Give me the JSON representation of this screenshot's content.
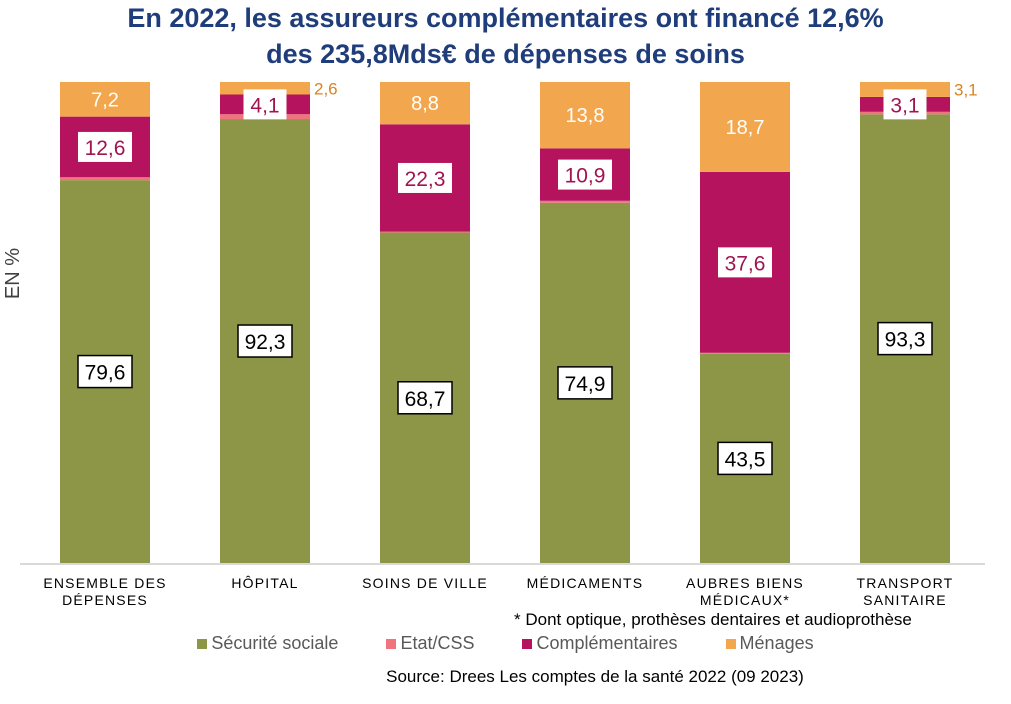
{
  "title": {
    "line1": "En 2022, les assureurs complémentaires ont financé 12,6%",
    "line2": "des 235,8Mds€ de dépenses de soins"
  },
  "chart_data": {
    "type": "bar",
    "stacked": true,
    "title": "En 2022, les assureurs complémentaires ont financé 12,6% des 235,8Mds€ de dépenses de soins",
    "ylabel": "EN %",
    "ylim": [
      0,
      100
    ],
    "grid": false,
    "legend_position": "bottom",
    "categories": [
      [
        "ENSEMBLE DES",
        "DÉPENSES"
      ],
      [
        "HÔPITAL"
      ],
      [
        "SOINS DE VILLE"
      ],
      [
        "MÉDICAMENTS"
      ],
      [
        "AUBRES BIENS",
        "MÉDICAUX*"
      ],
      [
        "TRANSPORT",
        "SANITAIRE"
      ]
    ],
    "series": [
      {
        "name": "Sécurité sociale",
        "color": "#8C9646",
        "values": [
          79.6,
          92.3,
          68.7,
          74.9,
          43.5,
          93.3
        ],
        "labels": [
          "79,6",
          "92,3",
          "68,7",
          "74,9",
          "43,5",
          "93,3"
        ]
      },
      {
        "name": "Etat/CSS",
        "color": "#F0737D",
        "values": [
          0.6,
          1.0,
          0.2,
          0.4,
          0.2,
          0.5
        ],
        "labels": [
          "",
          "",
          "",
          "",
          "",
          ""
        ]
      },
      {
        "name": "Complémentaires",
        "color": "#B5135E",
        "values": [
          12.6,
          4.1,
          22.3,
          10.9,
          37.6,
          3.1
        ],
        "labels": [
          "12,6",
          "4,1",
          "22,3",
          "10,9",
          "37,6",
          "3,1"
        ]
      },
      {
        "name": "Ménages",
        "color": "#F2A64E",
        "values": [
          7.2,
          2.6,
          8.8,
          13.8,
          18.7,
          3.1
        ],
        "labels": [
          "7,2",
          "2,6",
          "8,8",
          "13,8",
          "18,7",
          "3,1"
        ]
      }
    ]
  },
  "note": "* Dont optique, prothèses dentaires et audioprothèse",
  "source": "Source: Drees Les comptes de la santé 2022 (09 2023)"
}
